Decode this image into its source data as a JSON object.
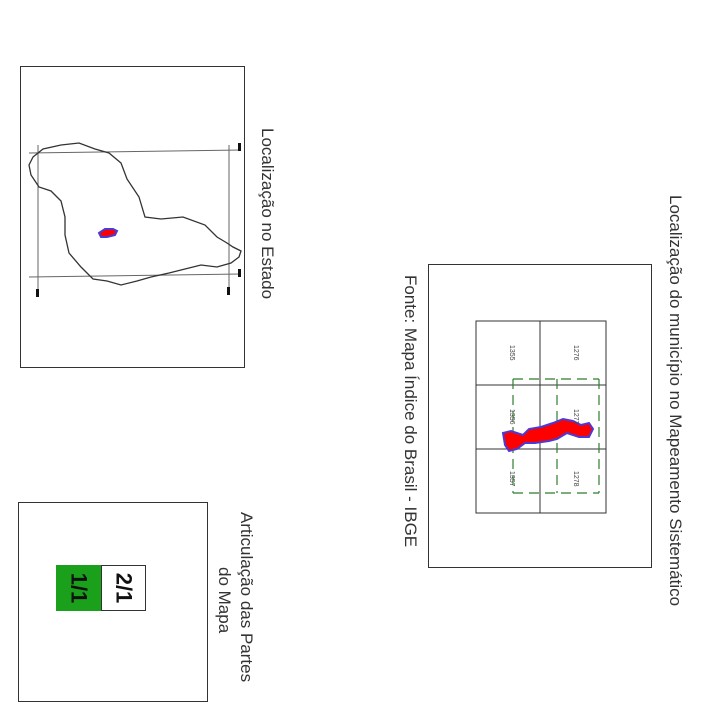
{
  "labels": {
    "state_location": "Localização no Estado",
    "systematic_mapping": "Localização do município no Mapeamento Sistemático",
    "source": "Fonte: Mapa Índice do Brasil - IBGE",
    "articulation_line1": "Articulação das Partes",
    "articulation_line2": "do Mapa"
  },
  "sheets": {
    "s1276": "1276",
    "s1277": "1277",
    "s1278": "1278",
    "s1355": "1355",
    "s1356": "1356",
    "s1357": "1357"
  },
  "parts": {
    "part_a": "1/1",
    "part_b": "2/1"
  },
  "colors": {
    "municipality_fill": "#ff0000",
    "municipality_outline": "#4b3bd6",
    "active_part": "#1aa01a",
    "grid_line": "#2e7d2e"
  }
}
